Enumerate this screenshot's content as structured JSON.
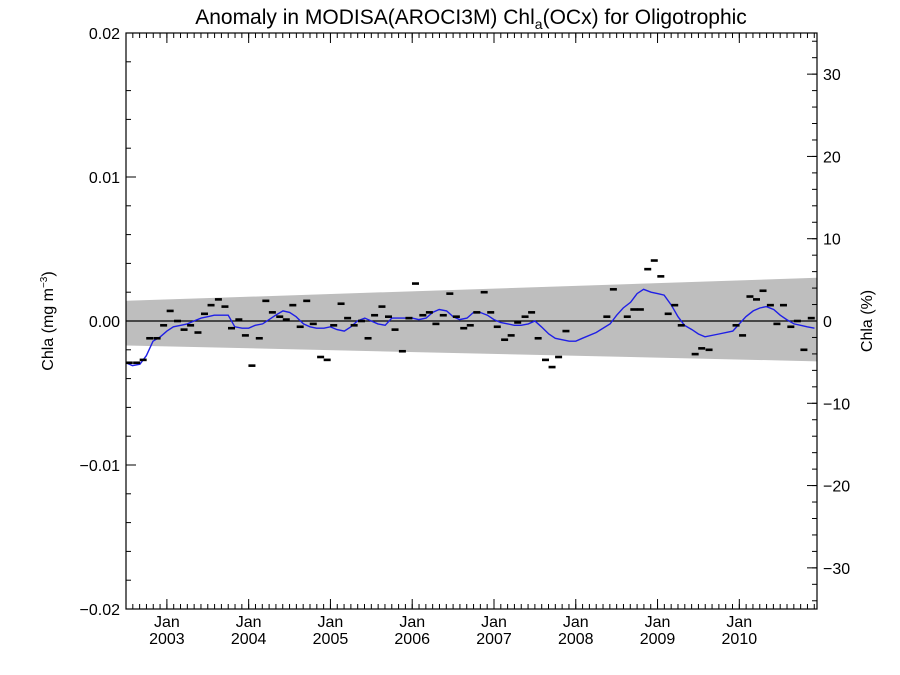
{
  "chart_data": {
    "type": "scatter",
    "title": {
      "main": "Anomaly in MODISA(AROCI3M) Chl",
      "sub": "a",
      "rest": "(OCx) for Oligotrophic"
    },
    "ylabel_left": "Chla (mg m",
    "ylabel_left_sup": "−3",
    "ylabel_left_end": ")",
    "ylabel_right": "Chla (%)",
    "xlim": [
      2002.5,
      2010.95
    ],
    "ylim_left": [
      -0.02,
      0.02
    ],
    "ylim_right": [
      -35,
      35
    ],
    "left_ticks": [
      "−0.02",
      "−0.01",
      "0.00",
      "0.01",
      "0.02"
    ],
    "left_tick_values": [
      -0.02,
      -0.01,
      0.0,
      0.01,
      0.02
    ],
    "right_ticks": [
      "−30",
      "−20",
      "−10",
      "0",
      "10",
      "20",
      "30"
    ],
    "right_tick_values": [
      -30,
      -20,
      -10,
      0,
      10,
      20,
      30
    ],
    "x_ticks": [
      {
        "month": "Jan",
        "year": "2003",
        "value": 2003.0
      },
      {
        "month": "Jan",
        "year": "2004",
        "value": 2004.0
      },
      {
        "month": "Jan",
        "year": "2005",
        "value": 2005.0
      },
      {
        "month": "Jan",
        "year": "2006",
        "value": 2006.0
      },
      {
        "month": "Jan",
        "year": "2007",
        "value": 2007.0
      },
      {
        "month": "Jan",
        "year": "2008",
        "value": 2008.0
      },
      {
        "month": "Jan",
        "year": "2009",
        "value": 2009.0
      },
      {
        "month": "Jan",
        "year": "2010",
        "value": 2010.0
      }
    ],
    "band": {
      "start": [
        2002.5,
        -0.0017,
        0.0014
      ],
      "end": [
        2010.95,
        -0.0028,
        0.003
      ]
    },
    "monthly_points": [
      [
        2002.54,
        -0.0029
      ],
      [
        2002.63,
        -0.0029
      ],
      [
        2002.71,
        -0.0027
      ],
      [
        2002.79,
        -0.0012
      ],
      [
        2002.88,
        -0.0012
      ],
      [
        2002.96,
        -0.0003
      ],
      [
        2003.04,
        0.0007
      ],
      [
        2003.13,
        0.0
      ],
      [
        2003.21,
        -0.0006
      ],
      [
        2003.29,
        -0.0003
      ],
      [
        2003.38,
        -0.0008
      ],
      [
        2003.46,
        0.0005
      ],
      [
        2003.54,
        0.0011
      ],
      [
        2003.63,
        0.0015
      ],
      [
        2003.71,
        0.001
      ],
      [
        2003.79,
        -0.0005
      ],
      [
        2003.88,
        0.0001
      ],
      [
        2003.96,
        -0.001
      ],
      [
        2004.04,
        -0.0031
      ],
      [
        2004.13,
        -0.0012
      ],
      [
        2004.21,
        0.0014
      ],
      [
        2004.29,
        0.0006
      ],
      [
        2004.38,
        0.0003
      ],
      [
        2004.46,
        0.0001
      ],
      [
        2004.54,
        0.0011
      ],
      [
        2004.63,
        -0.0004
      ],
      [
        2004.71,
        0.0014
      ],
      [
        2004.79,
        -0.0002
      ],
      [
        2004.88,
        -0.0025
      ],
      [
        2004.96,
        -0.0027
      ],
      [
        2005.04,
        -0.0003
      ],
      [
        2005.13,
        0.0012
      ],
      [
        2005.21,
        0.0002
      ],
      [
        2005.29,
        -0.0003
      ],
      [
        2005.38,
        0.0
      ],
      [
        2005.46,
        -0.0012
      ],
      [
        2005.54,
        0.0004
      ],
      [
        2005.63,
        0.001
      ],
      [
        2005.71,
        0.0003
      ],
      [
        2005.79,
        -0.0006
      ],
      [
        2005.88,
        -0.0021
      ],
      [
        2005.96,
        0.0002
      ],
      [
        2006.04,
        0.0026
      ],
      [
        2006.13,
        0.0004
      ],
      [
        2006.21,
        0.0006
      ],
      [
        2006.29,
        -0.0002
      ],
      [
        2006.38,
        0.0004
      ],
      [
        2006.46,
        0.0019
      ],
      [
        2006.54,
        0.0003
      ],
      [
        2006.63,
        -0.0005
      ],
      [
        2006.71,
        -0.0003
      ],
      [
        2006.79,
        0.0006
      ],
      [
        2006.88,
        0.002
      ],
      [
        2006.96,
        0.0006
      ],
      [
        2007.04,
        -0.0004
      ],
      [
        2007.13,
        -0.0013
      ],
      [
        2007.21,
        -0.001
      ],
      [
        2007.29,
        -0.0001
      ],
      [
        2007.38,
        0.0003
      ],
      [
        2007.46,
        0.0006
      ],
      [
        2007.54,
        -0.0012
      ],
      [
        2007.63,
        -0.0027
      ],
      [
        2007.71,
        -0.0032
      ],
      [
        2007.79,
        -0.0025
      ],
      [
        2007.88,
        -0.0007
      ],
      [
        2008.38,
        0.0003
      ],
      [
        2008.46,
        0.0022
      ],
      [
        2008.63,
        0.0003
      ],
      [
        2008.71,
        0.0008
      ],
      [
        2008.79,
        0.0008
      ],
      [
        2008.88,
        0.0036
      ],
      [
        2008.96,
        0.0042
      ],
      [
        2009.04,
        0.0031
      ],
      [
        2009.13,
        0.0005
      ],
      [
        2009.21,
        0.0011
      ],
      [
        2009.29,
        -0.0003
      ],
      [
        2009.46,
        -0.0023
      ],
      [
        2009.54,
        -0.0019
      ],
      [
        2009.63,
        -0.002
      ],
      [
        2009.96,
        -0.0003
      ],
      [
        2010.04,
        -0.001
      ],
      [
        2010.13,
        0.0017
      ],
      [
        2010.21,
        0.0015
      ],
      [
        2010.29,
        0.0021
      ],
      [
        2010.38,
        0.0011
      ],
      [
        2010.46,
        -0.0002
      ],
      [
        2010.54,
        0.0011
      ],
      [
        2010.63,
        -0.0004
      ],
      [
        2010.71,
        0.0
      ],
      [
        2010.79,
        -0.002
      ],
      [
        2010.88,
        0.0002
      ]
    ],
    "running_mean": [
      [
        2002.5,
        -0.0029
      ],
      [
        2002.58,
        -0.0031
      ],
      [
        2002.67,
        -0.003
      ],
      [
        2002.75,
        -0.0024
      ],
      [
        2002.83,
        -0.0014
      ],
      [
        2002.92,
        -0.0011
      ],
      [
        2003.0,
        -0.0007
      ],
      [
        2003.08,
        -0.0004
      ],
      [
        2003.17,
        -0.0003
      ],
      [
        2003.25,
        -0.0002
      ],
      [
        2003.33,
        0.0
      ],
      [
        2003.42,
        0.0002
      ],
      [
        2003.5,
        0.0003
      ],
      [
        2003.58,
        0.0004
      ],
      [
        2003.67,
        0.0004
      ],
      [
        2003.75,
        0.0004
      ],
      [
        2003.83,
        -0.0004
      ],
      [
        2003.92,
        -0.0005
      ],
      [
        2004.0,
        -0.0005
      ],
      [
        2004.08,
        -0.0003
      ],
      [
        2004.17,
        -0.0002
      ],
      [
        2004.25,
        0.0001
      ],
      [
        2004.33,
        0.0004
      ],
      [
        2004.42,
        0.0007
      ],
      [
        2004.5,
        0.0006
      ],
      [
        2004.58,
        0.0003
      ],
      [
        2004.67,
        -0.0002
      ],
      [
        2004.75,
        -0.0004
      ],
      [
        2004.83,
        -0.0005
      ],
      [
        2004.92,
        -0.0005
      ],
      [
        2005.0,
        -0.0004
      ],
      [
        2005.08,
        -0.0006
      ],
      [
        2005.17,
        -0.0007
      ],
      [
        2005.25,
        -0.0004
      ],
      [
        2005.33,
        0.0
      ],
      [
        2005.42,
        0.0002
      ],
      [
        2005.5,
        0.0
      ],
      [
        2005.58,
        -0.0002
      ],
      [
        2005.67,
        -0.0003
      ],
      [
        2005.75,
        0.0002
      ],
      [
        2005.83,
        0.0002
      ],
      [
        2005.92,
        0.0002
      ],
      [
        2006.0,
        0.0002
      ],
      [
        2006.08,
        0.0001
      ],
      [
        2006.17,
        0.0002
      ],
      [
        2006.25,
        0.0006
      ],
      [
        2006.33,
        0.0008
      ],
      [
        2006.42,
        0.0007
      ],
      [
        2006.5,
        0.0003
      ],
      [
        2006.58,
        0.0001
      ],
      [
        2006.67,
        0.0002
      ],
      [
        2006.75,
        0.0006
      ],
      [
        2006.83,
        0.0006
      ],
      [
        2006.92,
        0.0004
      ],
      [
        2007.0,
        0.0001
      ],
      [
        2007.08,
        -0.0001
      ],
      [
        2007.17,
        -0.0002
      ],
      [
        2007.25,
        -0.0003
      ],
      [
        2007.33,
        -0.0003
      ],
      [
        2007.42,
        -0.0002
      ],
      [
        2007.5,
        0.0
      ],
      [
        2007.58,
        -0.0004
      ],
      [
        2007.67,
        -0.0009
      ],
      [
        2007.75,
        -0.0012
      ],
      [
        2007.83,
        -0.0013
      ],
      [
        2007.92,
        -0.0014
      ],
      [
        2008.0,
        -0.0014
      ],
      [
        2008.08,
        -0.0012
      ],
      [
        2008.25,
        -0.0008
      ],
      [
        2008.42,
        -0.0002
      ],
      [
        2008.5,
        0.0004
      ],
      [
        2008.58,
        0.0009
      ],
      [
        2008.67,
        0.0013
      ],
      [
        2008.75,
        0.0019
      ],
      [
        2008.83,
        0.0022
      ],
      [
        2008.92,
        0.002
      ],
      [
        2009.0,
        0.0019
      ],
      [
        2009.08,
        0.0018
      ],
      [
        2009.17,
        0.0011
      ],
      [
        2009.25,
        0.0003
      ],
      [
        2009.33,
        -0.0003
      ],
      [
        2009.42,
        -0.0006
      ],
      [
        2009.5,
        -0.0009
      ],
      [
        2009.58,
        -0.0011
      ],
      [
        2009.75,
        -0.0009
      ],
      [
        2009.92,
        -0.0007
      ],
      [
        2010.0,
        -0.0002
      ],
      [
        2010.08,
        0.0003
      ],
      [
        2010.17,
        0.0007
      ],
      [
        2010.25,
        0.0009
      ],
      [
        2010.33,
        0.001
      ],
      [
        2010.42,
        0.0008
      ],
      [
        2010.5,
        0.0004
      ],
      [
        2010.58,
        0.0001
      ],
      [
        2010.67,
        -0.0002
      ],
      [
        2010.75,
        -0.0003
      ],
      [
        2010.83,
        -0.0004
      ],
      [
        2010.92,
        -0.0005
      ]
    ],
    "colors": {
      "band": "#bebebe",
      "mean_line": "#1f1fe6",
      "points": "#000000",
      "zero_line": "#000000"
    }
  }
}
